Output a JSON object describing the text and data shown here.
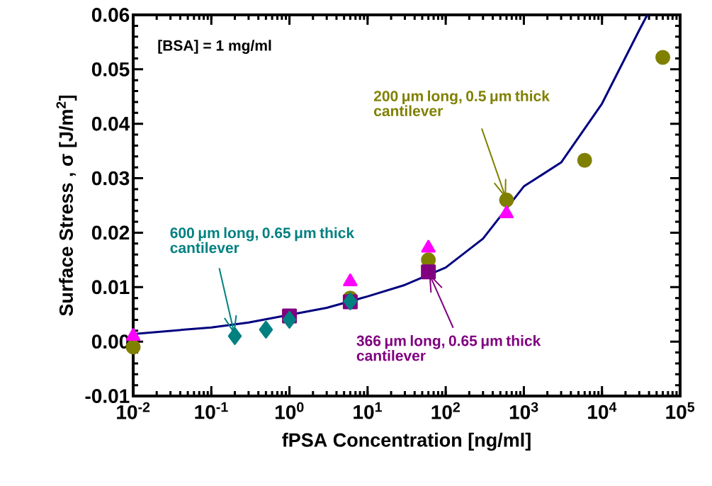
{
  "chart_data": {
    "type": "scatter",
    "xlabel": "fPSA Concentration [ng/ml]",
    "ylabel": "Surface Stress , σ [J/m$^{2}$]",
    "log": "x",
    "xlim": [
      0.01,
      100000
    ],
    "ylim": [
      -0.01,
      0.06
    ],
    "xticks": [
      {
        "value": 0.01,
        "label": "10$^{-2}$"
      },
      {
        "value": 0.1,
        "label": "10$^{-1}$"
      },
      {
        "value": 1,
        "label": "10$^{0}$"
      },
      {
        "value": 10,
        "label": "10$^{1}$"
      },
      {
        "value": 100,
        "label": "10$^{2}$"
      },
      {
        "value": 1000,
        "label": "10$^{3}$"
      },
      {
        "value": 10000,
        "label": "10$^{4}$"
      },
      {
        "value": 100000,
        "label": "10$^{5}$"
      }
    ],
    "yticks": [
      -0.01,
      {
        "value": 0,
        "label": "0.00"
      },
      0.01,
      0.02,
      0.03,
      0.04,
      0.05,
      0.06
    ],
    "series": [
      {
        "color": "#808000",
        "marker": "circle",
        "x": [
          0.01,
          6,
          60,
          600,
          6000,
          60000
        ],
        "values": [
          -0.001,
          0.008,
          0.015,
          0.026,
          0.0333,
          0.0522
        ]
      },
      {
        "color": "#800080",
        "marker": "square",
        "x": [
          1,
          6,
          60
        ],
        "values": [
          0.0047,
          0.0073,
          0.0128
        ]
      },
      {
        "color": "#008080",
        "marker": "diamond",
        "x": [
          0.2,
          0.5,
          1,
          6
        ],
        "values": [
          0.001,
          0.0022,
          0.004,
          0.0074
        ]
      },
      {
        "color": "#ff00ff",
        "marker": "triangle",
        "x": [
          0.01,
          6,
          60,
          600
        ],
        "values": [
          0.001,
          0.011,
          0.0172,
          0.0235
        ]
      },
      {
        "type": "line",
        "color": "#000080",
        "marker": "none",
        "x": [
          0.01,
          0.1,
          0.3,
          3,
          10,
          30,
          100,
          300,
          1000,
          3000,
          10000,
          30000,
          38000
        ],
        "values": [
          0.0014,
          0.0026,
          0.0035,
          0.0062,
          0.0083,
          0.0104,
          0.0136,
          0.0189,
          0.0285,
          0.0329,
          0.0437,
          0.0572,
          0.06
        ]
      }
    ],
    "annotations": [
      "[BSA] = 1 mg/ml",
      {
        "text": "200 μm long, 0.5 μm thick cantilever",
        "x": 600,
        "y": 0.026
      },
      {
        "text": "600 μm long, 0.65 μm thick cantilever",
        "x": 0.2,
        "y": 0.001
      },
      {
        "text": "366 μm long, 0.65 μm thick cantilever",
        "x": 60,
        "y": 0.0128
      }
    ]
  }
}
